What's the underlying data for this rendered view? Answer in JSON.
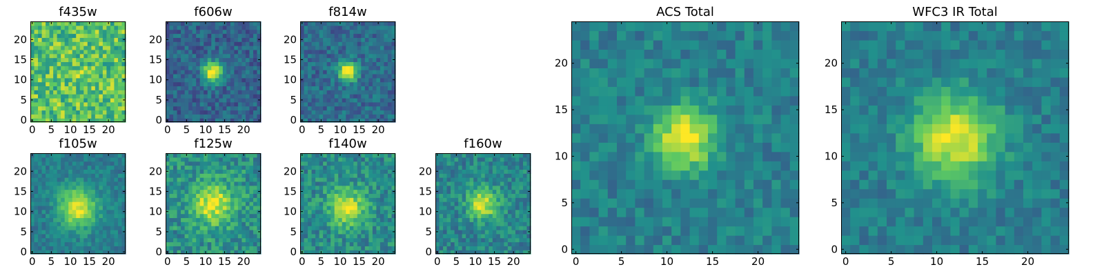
{
  "figure": {
    "colormap": "viridis",
    "colormap_stops": [
      "#440154",
      "#3b528b",
      "#21918c",
      "#5ec962",
      "#fde725"
    ]
  },
  "chart_data": [
    {
      "type": "heatmap",
      "title": "f435w",
      "grid_size": 25,
      "xlim": [
        -0.5,
        24.5
      ],
      "ylim": [
        -0.5,
        24.5
      ],
      "xticks": [
        0,
        5,
        10,
        15,
        20
      ],
      "yticks": [
        0,
        5,
        10,
        15,
        20
      ],
      "source_peak": [
        12,
        12
      ],
      "source_strength": 0.05,
      "source_width": 2.5,
      "background_level": 0.72,
      "noise_level": 0.22,
      "seed": 11,
      "grid": false,
      "legend": "none"
    },
    {
      "type": "heatmap",
      "title": "f606w",
      "grid_size": 25,
      "xlim": [
        -0.5,
        24.5
      ],
      "ylim": [
        -0.5,
        24.5
      ],
      "xticks": [
        0,
        5,
        10,
        15,
        20
      ],
      "yticks": [
        0,
        5,
        10,
        15,
        20
      ],
      "source_peak": [
        12,
        12
      ],
      "source_strength": 0.75,
      "source_width": 1.8,
      "background_level": 0.32,
      "noise_level": 0.13,
      "seed": 23,
      "grid": false,
      "legend": "none"
    },
    {
      "type": "heatmap",
      "title": "f814w",
      "grid_size": 25,
      "xlim": [
        -0.5,
        24.5
      ],
      "ylim": [
        -0.5,
        24.5
      ],
      "xticks": [
        0,
        5,
        10,
        15,
        20
      ],
      "yticks": [
        0,
        5,
        10,
        15,
        20
      ],
      "source_peak": [
        12,
        12
      ],
      "source_strength": 0.72,
      "source_width": 1.7,
      "background_level": 0.35,
      "noise_level": 0.13,
      "seed": 37,
      "grid": false,
      "legend": "none"
    },
    {
      "type": "heatmap",
      "title": "f105w",
      "grid_size": 25,
      "xlim": [
        -0.5,
        24.5
      ],
      "ylim": [
        -0.5,
        24.5
      ],
      "xticks": [
        0,
        5,
        10,
        15,
        20
      ],
      "yticks": [
        0,
        5,
        10,
        15,
        20
      ],
      "source_peak": [
        12,
        11
      ],
      "source_strength": 0.55,
      "source_width": 3.5,
      "background_level": 0.42,
      "noise_level": 0.1,
      "seed": 41,
      "grid": false,
      "legend": "none"
    },
    {
      "type": "heatmap",
      "title": "f125w",
      "grid_size": 25,
      "xlim": [
        -0.5,
        24.5
      ],
      "ylim": [
        -0.5,
        24.5
      ],
      "xticks": [
        0,
        5,
        10,
        15,
        20
      ],
      "yticks": [
        0,
        5,
        10,
        15,
        20
      ],
      "source_peak": [
        12,
        12
      ],
      "source_strength": 0.45,
      "source_width": 3.8,
      "background_level": 0.5,
      "noise_level": 0.16,
      "seed": 53,
      "grid": false,
      "legend": "none"
    },
    {
      "type": "heatmap",
      "title": "f140w",
      "grid_size": 25,
      "xlim": [
        -0.5,
        24.5
      ],
      "ylim": [
        -0.5,
        24.5
      ],
      "xticks": [
        0,
        5,
        10,
        15,
        20
      ],
      "yticks": [
        0,
        5,
        10,
        15,
        20
      ],
      "source_peak": [
        12,
        11
      ],
      "source_strength": 0.45,
      "source_width": 3.3,
      "background_level": 0.48,
      "noise_level": 0.15,
      "seed": 67,
      "grid": false,
      "legend": "none"
    },
    {
      "type": "heatmap",
      "title": "f160w",
      "grid_size": 25,
      "xlim": [
        -0.5,
        24.5
      ],
      "ylim": [
        -0.5,
        24.5
      ],
      "xticks": [
        0,
        5,
        10,
        15,
        20
      ],
      "yticks": [
        0,
        5,
        10,
        15,
        20
      ],
      "source_peak": [
        12,
        12
      ],
      "source_strength": 0.5,
      "source_width": 2.8,
      "background_level": 0.45,
      "noise_level": 0.14,
      "seed": 79,
      "grid": false,
      "legend": "none"
    },
    {
      "type": "heatmap",
      "title": "ACS Total",
      "grid_size": 25,
      "xlim": [
        -0.5,
        24.5
      ],
      "ylim": [
        -0.5,
        24.5
      ],
      "xticks": [
        0,
        5,
        10,
        15,
        20
      ],
      "yticks": [
        0,
        5,
        10,
        15,
        20
      ],
      "source_peak": [
        12,
        12
      ],
      "source_strength": 0.58,
      "source_width": 2.4,
      "background_level": 0.43,
      "noise_level": 0.11,
      "seed": 83,
      "grid": false,
      "legend": "none"
    },
    {
      "type": "heatmap",
      "title": "WFC3 IR Total",
      "grid_size": 25,
      "xlim": [
        -0.5,
        24.5
      ],
      "ylim": [
        -0.5,
        24.5
      ],
      "xticks": [
        0,
        5,
        10,
        15,
        20
      ],
      "yticks": [
        0,
        5,
        10,
        15,
        20
      ],
      "source_peak": [
        12,
        12
      ],
      "source_strength": 0.55,
      "source_width": 3.3,
      "background_level": 0.42,
      "noise_level": 0.1,
      "seed": 97,
      "grid": false,
      "legend": "none"
    }
  ]
}
